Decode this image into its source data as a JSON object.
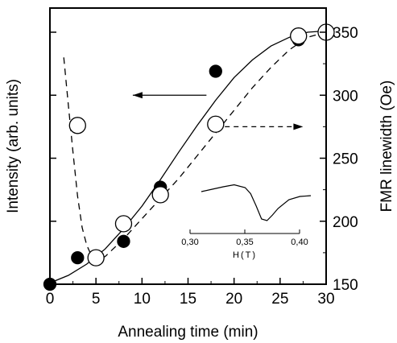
{
  "chart_data": {
    "type": "scatter",
    "xlabel": "Annealing time (min)",
    "ylabel_left": "Intensity (arb. units)",
    "ylabel_right": "FMR linewidth (Oe)",
    "xlim": [
      0,
      30
    ],
    "x_ticks": [
      "0",
      "5",
      "10",
      "15",
      "20",
      "25",
      "30"
    ],
    "y_right_lim": [
      150,
      350
    ],
    "y_right_ticks": [
      "150",
      "200",
      "250",
      "300",
      "350"
    ],
    "y_left_ticks_labeled": false,
    "grid": false,
    "series": [
      {
        "marker": "filled-circle",
        "axis": "left",
        "x": [
          0,
          3,
          8,
          12,
          18,
          27
        ],
        "y": [
          150,
          171,
          184,
          227,
          319,
          344
        ]
      },
      {
        "marker": "open-circle",
        "axis": "right",
        "x": [
          3,
          5,
          8,
          12,
          18,
          27,
          30
        ],
        "y": [
          276,
          171,
          198,
          221,
          277,
          347,
          350
        ]
      }
    ],
    "fits": [
      {
        "style": "solid",
        "x": [
          0,
          2,
          4,
          6,
          8,
          10,
          12,
          14,
          16,
          18,
          20,
          22,
          24,
          26,
          28,
          30
        ],
        "y": [
          151,
          157,
          166,
          178,
          194,
          212,
          233,
          255,
          276,
          296,
          314,
          328,
          339,
          346,
          350,
          351
        ]
      },
      {
        "style": "dashed",
        "x": [
          1.5,
          2,
          2.5,
          3,
          3.5,
          4,
          4.5,
          5,
          6,
          8,
          10,
          12,
          14,
          16,
          18,
          20,
          22,
          24,
          26,
          28,
          30
        ],
        "y": [
          330,
          292,
          255,
          220,
          195,
          181,
          173,
          169,
          172,
          186,
          202,
          218,
          234,
          252,
          270,
          288,
          306,
          322,
          336,
          346,
          350
        ]
      }
    ],
    "annotations": [
      {
        "type": "arrow",
        "direction": "left",
        "style": "solid",
        "from": [
          17,
          300
        ],
        "to": [
          9,
          300
        ]
      },
      {
        "type": "arrow",
        "direction": "right",
        "style": "dashed",
        "from": [
          19,
          275
        ],
        "to": [
          27.5,
          275
        ]
      }
    ],
    "inset": {
      "xlabel": "H(T)",
      "x_ticks": [
        "0,30",
        "0,35",
        "0,40"
      ],
      "xlim": [
        0.3,
        0.4
      ],
      "line": {
        "x": [
          0.3,
          0.31,
          0.32,
          0.33,
          0.34,
          0.345,
          0.35,
          0.355,
          0.36,
          0.365,
          0.37,
          0.38,
          0.39,
          0.4
        ],
        "y": [
          0.8,
          0.86,
          0.92,
          0.97,
          0.9,
          0.75,
          0.45,
          0.12,
          0.08,
          0.22,
          0.38,
          0.6,
          0.68,
          0.7
        ]
      }
    }
  }
}
